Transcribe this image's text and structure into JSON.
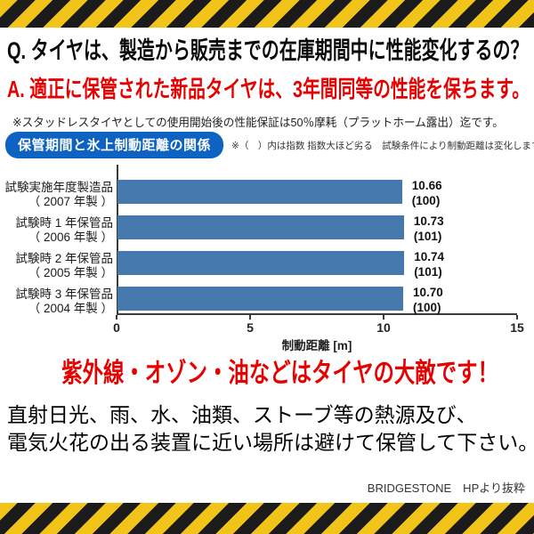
{
  "header": {
    "question": "Q. タイヤは、製造から販売までの在庫期間中に性能変化するの？",
    "answer": "A. 適正に保管された新品タイヤは、3年間同等の性能を保ちます。",
    "note": "※スタッドレスタイヤとしての使用開始後の性能保証は50％摩耗（プラットホーム露出）迄です。"
  },
  "section": {
    "badge_label": "保管期間と氷上制動距離の関係",
    "badge_note": "※（　）内は指数 指数大ほど劣る　試験条件により制動距離は変化します。"
  },
  "chart_data": {
    "type": "bar",
    "orientation": "horizontal",
    "title": "保管期間と氷上制動距離の関係",
    "categories": [
      "試験実施年度製造品（2007年製）",
      "試験時1年保管品（2006年製）",
      "試験時2年保管品（2005年製）",
      "試験時3年保管品（2004年製）"
    ],
    "category_lines": [
      [
        "試験実施年度製造品",
        "（ 2007 年製 ）"
      ],
      [
        "試験時 1 年保管品",
        "（ 2006 年製 ）"
      ],
      [
        "試験時 2 年保管品",
        "（ 2005 年製 ）"
      ],
      [
        "試験時 3 年保管品",
        "（ 2004 年製 ）"
      ]
    ],
    "values": [
      10.66,
      10.73,
      10.74,
      10.7
    ],
    "indices": [
      100,
      101,
      101,
      100
    ],
    "value_labels": [
      [
        "10.66",
        "(100)"
      ],
      [
        "10.73",
        "(101)"
      ],
      [
        "10.74",
        "(101)"
      ],
      [
        "10.70",
        "(100)"
      ]
    ],
    "xlabel": "制動距離 [m]",
    "ylabel": "",
    "xlim": [
      0,
      15
    ],
    "xticks": [
      0,
      5,
      10,
      15
    ],
    "grid": false,
    "legend": false
  },
  "footer": {
    "headline": "紫外線・オゾン・油などはタイヤの大敵です！",
    "body_line1": "直射日光、雨、水、油類、ストーブ等の熱源及び、",
    "body_line2": "電気火花の出る装置に近い場所は避けて保管して下さい。",
    "credit": "BRIDGESTONE　HPより抜粋"
  },
  "colors": {
    "bar": "#4579ad",
    "badge": "#0e62c2",
    "accent_red": "#e60000",
    "hazard_yellow": "#f2c318",
    "hazard_black": "#1b1b1b"
  }
}
